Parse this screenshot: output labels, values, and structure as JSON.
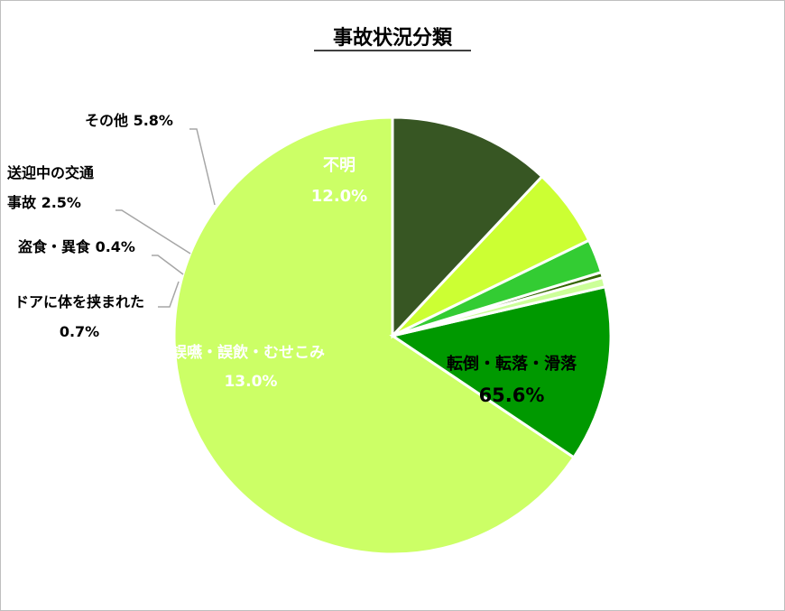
{
  "chart_data": {
    "type": "pie",
    "title": "事故状況分類",
    "slices": [
      {
        "label": "転倒・転落・滑落",
        "value": 65.6,
        "pct": "65.6%",
        "color": "#ccff66",
        "label_color": "#000000"
      },
      {
        "label": "誤嚥・誤飲・むせこみ",
        "value": 13.0,
        "pct": "13.0%",
        "color": "#009900",
        "label_color": "#ffffff"
      },
      {
        "label": "ドアに体を挟まれた",
        "value": 0.7,
        "pct": "0.7%",
        "color": "#ccff99",
        "label_color": "#000000"
      },
      {
        "label": "盗食・異食",
        "value": 0.4,
        "pct": "0.4%",
        "color": "#336600",
        "label_color": "#000000"
      },
      {
        "label": "送迎中の交通事故",
        "value": 2.5,
        "pct": "2.5%",
        "color": "#33cc33",
        "label_color": "#000000"
      },
      {
        "label": "その他",
        "value": 5.8,
        "pct": "5.8%",
        "color": "#ccff33",
        "label_color": "#000000"
      },
      {
        "label": "不明",
        "value": 12.0,
        "pct": "12.0%",
        "color": "#375623",
        "label_color": "#ffffff"
      }
    ],
    "start": "12 o'clock",
    "direction": "counter-clockwise",
    "legend": "none"
  }
}
